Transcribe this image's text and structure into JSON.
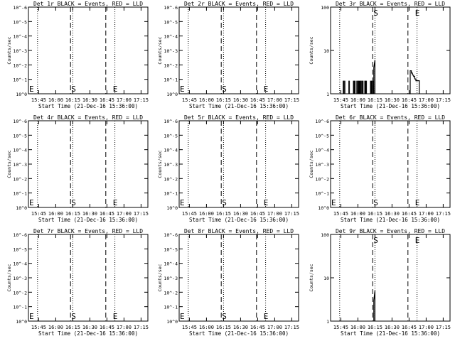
{
  "figure": {
    "xlabel": "Start Time (21-Dec-16 15:36:00)",
    "ylabel": "Counts/sec",
    "x_tick_labels": [
      "15:45",
      "16:00",
      "16:15",
      "16:30",
      "16:45",
      "17:00",
      "17:15"
    ],
    "marker_labels": {
      "start": "S",
      "end": "E"
    }
  },
  "chart_data": [
    {
      "type": "line",
      "title": "Det 1r BLACK = Events, RED = LLD",
      "xlabel": "Start Time (21-Dec-16 15:36:00)",
      "ylabel": "Counts/sec",
      "scale": "log",
      "ylim": [
        1,
        1e-06
      ],
      "y_ticks": [
        "10^0",
        "10^-1",
        "10^-2",
        "10^-3",
        "10^-4",
        "10^-5",
        "10^-6"
      ],
      "xlim": [
        "15:36",
        "17:21"
      ],
      "x_ticks": [
        "15:45",
        "16:00",
        "16:15",
        "16:30",
        "16:45",
        "17:00",
        "17:15"
      ],
      "dotted_lines": [
        "15:44",
        "16:15",
        "16:52"
      ],
      "start_marker": "16:13",
      "end_marker": "16:44",
      "start_label": "S",
      "end_label": "E",
      "series": []
    },
    {
      "type": "line",
      "title": "Det 2r BLACK = Events, RED = LLD",
      "xlabel": "Start Time (21-Dec-16 15:36:00)",
      "ylabel": "Counts/sec",
      "scale": "log",
      "ylim": [
        1,
        1e-06
      ],
      "y_ticks": [
        "10^0",
        "10^-1",
        "10^-2",
        "10^-3",
        "10^-4",
        "10^-5",
        "10^-6"
      ],
      "xlim": [
        "15:36",
        "17:21"
      ],
      "x_ticks": [
        "15:45",
        "16:00",
        "16:15",
        "16:30",
        "16:45",
        "17:00",
        "17:15"
      ],
      "dotted_lines": [
        "15:44",
        "16:15",
        "16:52"
      ],
      "start_marker": "16:13",
      "end_marker": "16:44",
      "start_label": "S",
      "end_label": "E",
      "series": []
    },
    {
      "type": "line",
      "title": "Det 3r BLACK = Events, RED = LLD",
      "xlabel": "Start Time (21-Dec-16 15:36:00)",
      "ylabel": "Counts/sec",
      "scale": "log",
      "ylim": [
        1,
        100
      ],
      "y_ticks": [
        "1",
        "10",
        "100"
      ],
      "xlim": [
        "15:36",
        "17:21"
      ],
      "x_ticks": [
        "15:45",
        "16:00",
        "16:15",
        "16:30",
        "16:45",
        "17:00",
        "17:15"
      ],
      "dotted_lines": [
        "15:44",
        "16:15",
        "16:52"
      ],
      "start_marker": "16:13",
      "end_marker": "16:44",
      "start_label": "S",
      "end_label": "E",
      "series": [
        {
          "style": "spikes",
          "x": [
            "15:47",
            "15:48",
            "15:52",
            "15:56",
            "15:57",
            "15:59",
            "16:00",
            "16:01",
            "16:02",
            "16:03",
            "16:04",
            "16:06",
            "16:07",
            "16:11",
            "16:12",
            "16:13"
          ],
          "y": [
            2,
            2,
            2,
            2,
            2,
            2,
            2,
            2,
            2,
            2,
            2,
            2,
            2,
            2,
            2,
            2
          ]
        },
        {
          "style": "step",
          "x": [
            "16:14",
            "16:14",
            "16:15",
            "16:15"
          ],
          "y": [
            1,
            4,
            6,
            1
          ]
        },
        {
          "style": "step",
          "x": [
            "16:45",
            "16:46",
            "16:46",
            "16:47",
            "16:47",
            "16:48",
            "16:48",
            "16:49",
            "16:49",
            "16:50",
            "16:50",
            "16:51",
            "16:51",
            "16:52",
            "16:52",
            "16:53",
            "16:53",
            "16:54",
            "16:54"
          ],
          "y": [
            1,
            1,
            3.4,
            3.4,
            3,
            3,
            2.7,
            2.7,
            2.5,
            2.5,
            2.2,
            2.2,
            2,
            2,
            2,
            2,
            2,
            2,
            1
          ]
        }
      ]
    },
    {
      "type": "line",
      "title": "Det 4r BLACK = Events, RED = LLD",
      "xlabel": "Start Time (21-Dec-16 15:36:00)",
      "ylabel": "Counts/sec",
      "scale": "log",
      "ylim": [
        1,
        1e-06
      ],
      "y_ticks": [
        "10^0",
        "10^-1",
        "10^-2",
        "10^-3",
        "10^-4",
        "10^-5",
        "10^-6"
      ],
      "xlim": [
        "15:36",
        "17:21"
      ],
      "x_ticks": [
        "15:45",
        "16:00",
        "16:15",
        "16:30",
        "16:45",
        "17:00",
        "17:15"
      ],
      "dotted_lines": [
        "15:44",
        "16:15",
        "16:52"
      ],
      "start_marker": "16:13",
      "end_marker": "16:44",
      "start_label": "S",
      "end_label": "E",
      "series": []
    },
    {
      "type": "line",
      "title": "Det 5r BLACK = Events, RED = LLD",
      "xlabel": "Start Time (21-Dec-16 15:36:00)",
      "ylabel": "Counts/sec",
      "scale": "log",
      "ylim": [
        1,
        1e-06
      ],
      "y_ticks": [
        "10^0",
        "10^-1",
        "10^-2",
        "10^-3",
        "10^-4",
        "10^-5",
        "10^-6"
      ],
      "xlim": [
        "15:36",
        "17:21"
      ],
      "x_ticks": [
        "15:45",
        "16:00",
        "16:15",
        "16:30",
        "16:45",
        "17:00",
        "17:15"
      ],
      "dotted_lines": [
        "15:44",
        "16:15",
        "16:52"
      ],
      "start_marker": "16:13",
      "end_marker": "16:44",
      "start_label": "S",
      "end_label": "E",
      "series": []
    },
    {
      "type": "line",
      "title": "Det 6r BLACK = Events, RED = LLD",
      "xlabel": "Start Time (21-Dec-16 15:36:00)",
      "ylabel": "Counts/sec",
      "scale": "log",
      "ylim": [
        1,
        1e-06
      ],
      "y_ticks": [
        "10^0",
        "10^-1",
        "10^-2",
        "10^-3",
        "10^-4",
        "10^-5",
        "10^-6"
      ],
      "xlim": [
        "15:36",
        "17:21"
      ],
      "x_ticks": [
        "15:45",
        "16:00",
        "16:15",
        "16:30",
        "16:45",
        "17:00",
        "17:15"
      ],
      "dotted_lines": [
        "15:44",
        "16:15",
        "16:52"
      ],
      "start_marker": "16:13",
      "end_marker": "16:44",
      "start_label": "S",
      "end_label": "E",
      "series": []
    },
    {
      "type": "line",
      "title": "Det 7r BLACK = Events, RED = LLD",
      "xlabel": "Start Time (21-Dec-16 15:36:00)",
      "ylabel": "Counts/sec",
      "scale": "log",
      "ylim": [
        1,
        1e-06
      ],
      "y_ticks": [
        "10^0",
        "10^-1",
        "10^-2",
        "10^-3",
        "10^-4",
        "10^-5",
        "10^-6"
      ],
      "xlim": [
        "15:36",
        "17:21"
      ],
      "x_ticks": [
        "15:45",
        "16:00",
        "16:15",
        "16:30",
        "16:45",
        "17:00",
        "17:15"
      ],
      "dotted_lines": [
        "15:44",
        "16:15",
        "16:52"
      ],
      "start_marker": "16:13",
      "end_marker": "16:44",
      "start_label": "S",
      "end_label": "E",
      "series": []
    },
    {
      "type": "line",
      "title": "Det 8r BLACK = Events, RED = LLD",
      "xlabel": "Start Time (21-Dec-16 15:36:00)",
      "ylabel": "Counts/sec",
      "scale": "log",
      "ylim": [
        1,
        1e-06
      ],
      "y_ticks": [
        "10^0",
        "10^-1",
        "10^-2",
        "10^-3",
        "10^-4",
        "10^-5",
        "10^-6"
      ],
      "xlim": [
        "15:36",
        "17:21"
      ],
      "x_ticks": [
        "15:45",
        "16:00",
        "16:15",
        "16:30",
        "16:45",
        "17:00",
        "17:15"
      ],
      "dotted_lines": [
        "15:44",
        "16:15",
        "16:52"
      ],
      "start_marker": "16:13",
      "end_marker": "16:44",
      "start_label": "S",
      "end_label": "E",
      "series": []
    },
    {
      "type": "line",
      "title": "Det 9r BLACK = Events, RED = LLD",
      "xlabel": "Start Time (21-Dec-16 15:36:00)",
      "ylabel": "Counts/sec",
      "scale": "log",
      "ylim": [
        1,
        100
      ],
      "y_ticks": [
        "1",
        "10",
        "100"
      ],
      "xlim": [
        "15:36",
        "17:21"
      ],
      "x_ticks": [
        "15:45",
        "16:00",
        "16:15",
        "16:30",
        "16:45",
        "17:00",
        "17:15"
      ],
      "dotted_lines": [
        "15:44",
        "16:15",
        "16:52"
      ],
      "start_marker": "16:13",
      "end_marker": "16:44",
      "start_label": "S",
      "end_label": "E",
      "series": [
        {
          "style": "step",
          "x": [
            "16:14",
            "16:14",
            "16:15",
            "16:15"
          ],
          "y": [
            1,
            3,
            5,
            1
          ]
        }
      ]
    }
  ]
}
